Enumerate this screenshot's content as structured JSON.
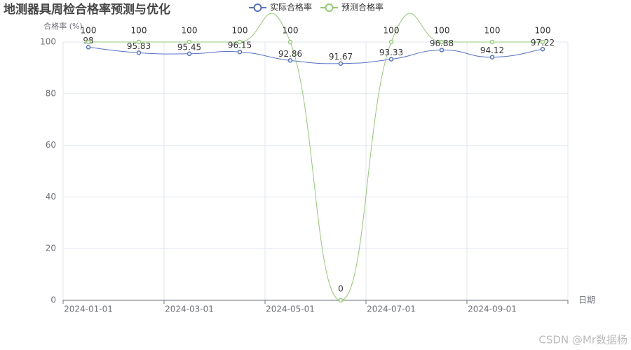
{
  "chart_data": {
    "type": "line",
    "title": "地测器具周检合格率预测与优化",
    "categories": [
      "2024-01-01",
      null,
      "2024-03-01",
      null,
      "2024-05-01",
      null,
      "2024-07-01",
      null,
      "2024-09-01",
      null
    ],
    "series": [
      {
        "name": "实际合格率",
        "color": "#5470c6",
        "values": [
          98,
          95.83,
          95.45,
          96.15,
          92.86,
          91.67,
          93.33,
          96.88,
          94.12,
          97.22
        ]
      },
      {
        "name": "预测合格率",
        "color": "#91cc75",
        "values": [
          100,
          100,
          100,
          100,
          100,
          0,
          100,
          100,
          100,
          100
        ]
      }
    ],
    "ylabel": "合格率 (%)",
    "xlabel": "日期",
    "ylim": [
      0,
      100
    ],
    "yticks": [
      0,
      20,
      40,
      60,
      80,
      100
    ],
    "grid": true,
    "smooth": true,
    "watermark": "CSDN @Mr数据杨"
  }
}
